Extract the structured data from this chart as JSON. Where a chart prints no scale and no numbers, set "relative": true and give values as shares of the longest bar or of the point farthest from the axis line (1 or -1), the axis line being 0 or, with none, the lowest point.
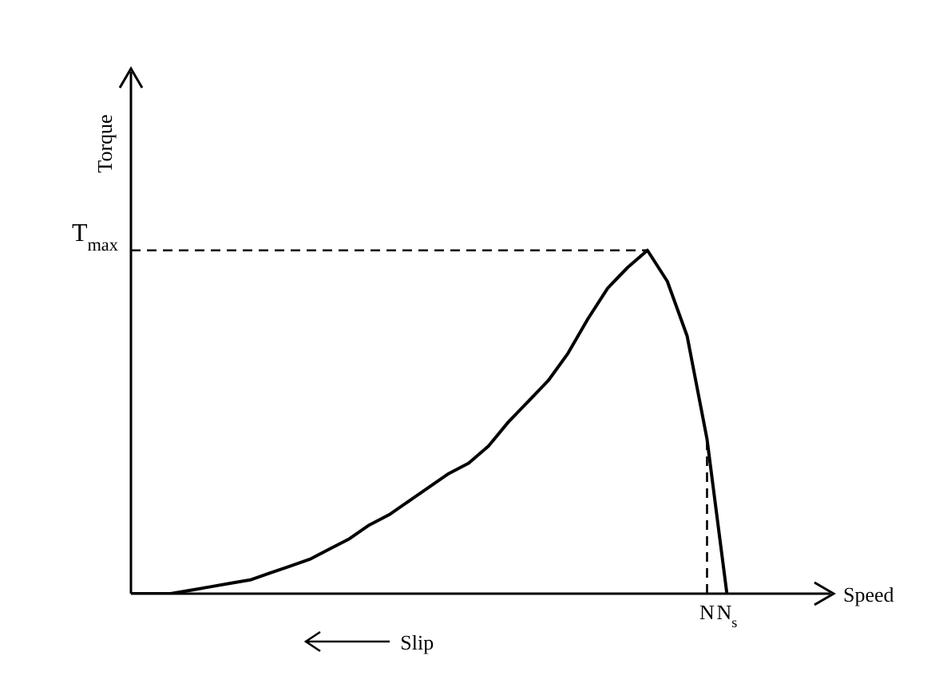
{
  "chart_data": {
    "type": "line",
    "relative": true,
    "ylabel": "Torque",
    "categories": [
      null,
      null,
      null,
      null,
      null,
      null,
      null,
      null,
      null,
      null,
      null,
      null,
      null,
      null,
      null,
      null,
      null,
      null,
      null,
      null,
      null,
      null,
      null,
      null,
      null,
      null,
      null,
      null,
      null,
      "N",
      "N$_{s}$"
    ],
    "series": [
      {
        "color": "#000000",
        "values": [
          0,
          0,
          0,
          0.01,
          0.02,
          0.03,
          0.04,
          0.06,
          0.08,
          0.1,
          0.13,
          0.16,
          0.2,
          0.23,
          0.27,
          0.31,
          0.35,
          0.38,
          0.43,
          0.5,
          0.56,
          0.62,
          0.7,
          0.8,
          0.89,
          0.95,
          1,
          0.91,
          0.75,
          0.45,
          0
        ]
      }
    ],
    "ref_lines": [
      {
        "axis": "y",
        "value": 1,
        "label": "T$_{max}$",
        "line_style": "dashed",
        "color": "#000000"
      },
      {
        "axis": "x",
        "value": "N",
        "line_style": "dashed",
        "color": "#000000"
      }
    ],
    "annotations": [
      "Slip",
      "Speed"
    ],
    "tick_labels": "x",
    "marker": "none",
    "line_style": "solid",
    "legend": false
  }
}
